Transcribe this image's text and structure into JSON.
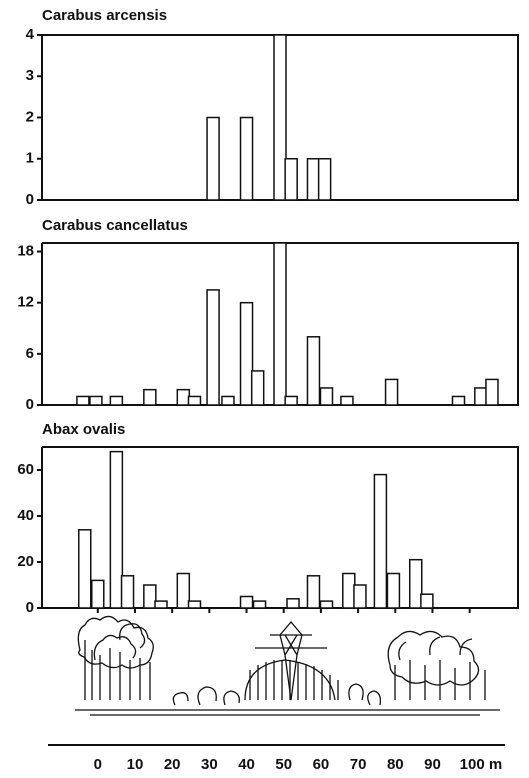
{
  "chart_data": [
    {
      "type": "bar",
      "title": "Carabus arcensis",
      "x": [
        31,
        40,
        49,
        52,
        58,
        61
      ],
      "values": [
        2,
        2,
        4,
        1,
        1,
        1
      ],
      "xlim": [
        -15,
        113
      ],
      "ylim": [
        0,
        4
      ],
      "yticks": [
        0,
        1,
        2,
        3,
        4
      ],
      "color": "#ffffff"
    },
    {
      "type": "bar",
      "title": "Carabus cancellatus",
      "x": [
        -4,
        -0.5,
        5,
        14,
        23,
        26,
        31,
        35,
        40,
        43,
        49,
        52,
        58,
        61.5,
        67,
        79,
        97,
        103,
        106
      ],
      "values": [
        1,
        1,
        1,
        1.8,
        1.8,
        1,
        13.5,
        1,
        12,
        4,
        19,
        1,
        8,
        2,
        1,
        3,
        1,
        2,
        3
      ],
      "xlim": [
        -15,
        113
      ],
      "ylim": [
        0,
        19
      ],
      "yticks": [
        0,
        6,
        12,
        18
      ],
      "color": "#ffffff"
    },
    {
      "type": "bar",
      "title": "Abax ovalis",
      "x": [
        -3.5,
        0,
        5,
        8,
        14,
        17,
        23,
        26,
        40,
        43.5,
        52.5,
        58,
        61.5,
        67.5,
        70.5,
        76,
        79.5,
        85.5,
        88.5
      ],
      "values": [
        34,
        12,
        68,
        14,
        10,
        3,
        15,
        3,
        5,
        3,
        4,
        14,
        3,
        15,
        10,
        58,
        15,
        21,
        6
      ],
      "xlim": [
        -15,
        113
      ],
      "ylim": [
        0,
        70
      ],
      "yticks": [
        0,
        20,
        40,
        60
      ],
      "color": "#ffffff",
      "xticks": [
        0,
        10,
        20,
        30,
        40,
        50,
        60,
        70,
        80,
        90,
        {
          "value": 100,
          "label": "100 m"
        }
      ]
    }
  ]
}
